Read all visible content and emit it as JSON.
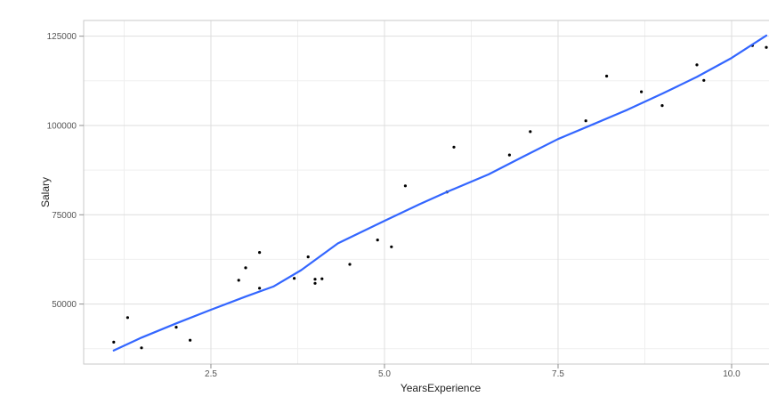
{
  "chart_data": {
    "type": "scatter",
    "title": "",
    "xlabel": "YearsExperience",
    "ylabel": "Salary",
    "xlim": [
      0.667,
      10.936
    ],
    "ylim": [
      33200,
      129400
    ],
    "grid": true,
    "legend_position": "none",
    "x_ticks": [
      2.5,
      5.0,
      7.5,
      10.0
    ],
    "x_tick_labels": [
      "2.5",
      "5.0",
      "7.5",
      "10.0"
    ],
    "x_minor_ticks": [
      1.25,
      3.75,
      6.25,
      8.75
    ],
    "y_ticks": [
      50000,
      75000,
      100000,
      125000
    ],
    "y_tick_labels": [
      "50000",
      "75000",
      "100000",
      "125000"
    ],
    "y_minor_ticks": [
      37500,
      62500,
      87500,
      112500
    ],
    "series": [
      {
        "name": "observations",
        "type": "scatter",
        "color": "#000000",
        "marker_radius": 1.6,
        "points": [
          [
            1.1,
            39343
          ],
          [
            1.3,
            46205
          ],
          [
            1.5,
            37731
          ],
          [
            2.0,
            43525
          ],
          [
            2.2,
            39891
          ],
          [
            2.9,
            56642
          ],
          [
            3.0,
            60150
          ],
          [
            3.2,
            54445
          ],
          [
            3.2,
            64445
          ],
          [
            3.7,
            57189
          ],
          [
            3.9,
            63218
          ],
          [
            4.0,
            55794
          ],
          [
            4.0,
            56957
          ],
          [
            4.1,
            57081
          ],
          [
            4.5,
            61111
          ],
          [
            4.9,
            67938
          ],
          [
            5.1,
            66029
          ],
          [
            5.3,
            83088
          ],
          [
            5.9,
            81363
          ],
          [
            6.0,
            93940
          ],
          [
            6.8,
            91738
          ],
          [
            7.1,
            98273
          ],
          [
            7.9,
            101302
          ],
          [
            8.2,
            113812
          ],
          [
            8.7,
            109431
          ],
          [
            9.0,
            105582
          ],
          [
            9.5,
            116969
          ],
          [
            9.6,
            112635
          ],
          [
            10.3,
            122391
          ],
          [
            10.5,
            121872
          ]
        ]
      },
      {
        "name": "smooth-fit-line",
        "type": "line",
        "color": "#3366FF",
        "stroke_width": 2.2,
        "points": [
          [
            1.1,
            37000
          ],
          [
            1.5,
            40600
          ],
          [
            2.0,
            44600
          ],
          [
            2.5,
            48400
          ],
          [
            3.0,
            52100
          ],
          [
            3.4,
            54900
          ],
          [
            3.8,
            59500
          ],
          [
            4.33,
            67000
          ],
          [
            5.0,
            73300
          ],
          [
            5.5,
            77900
          ],
          [
            5.9,
            81400
          ],
          [
            6.5,
            86300
          ],
          [
            7.0,
            91300
          ],
          [
            7.5,
            96200
          ],
          [
            8.0,
            100300
          ],
          [
            8.5,
            104400
          ],
          [
            9.0,
            108900
          ],
          [
            9.5,
            113600
          ],
          [
            10.0,
            118900
          ],
          [
            10.5,
            125200
          ]
        ]
      }
    ]
  },
  "style": {
    "panel_background": "#ffffff",
    "panel_border_color": "#c9c9c9",
    "major_grid_color": "#dedede",
    "minor_grid_color": "#efefef",
    "tick_mark_color": "#8f8f8f",
    "tick_label_color": "#545454",
    "axis_title_color": "#232323",
    "tick_label_font_size": 10,
    "tick_length": 5
  }
}
